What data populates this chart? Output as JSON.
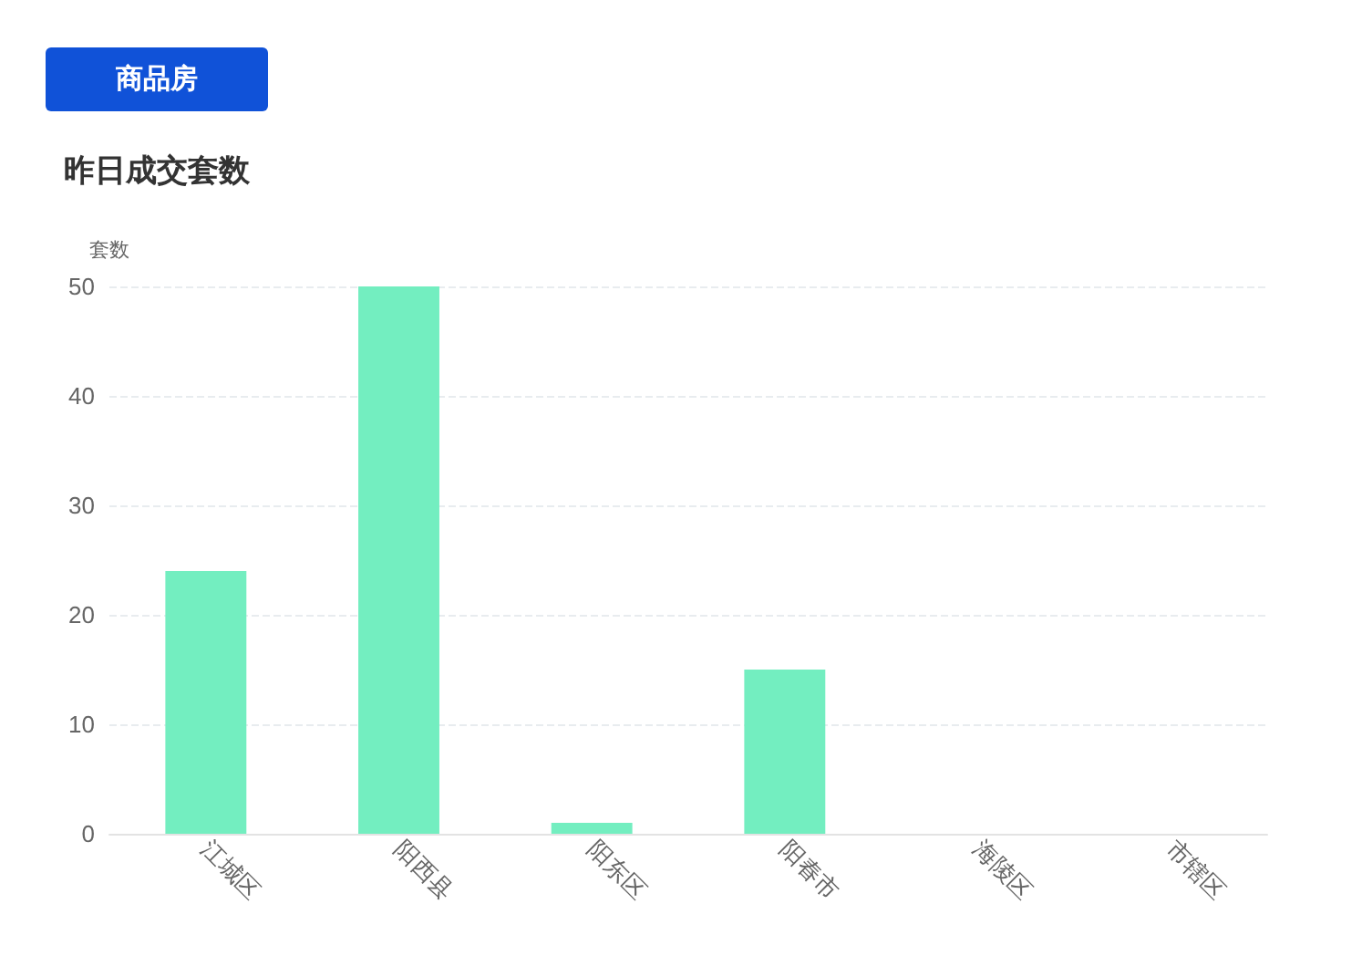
{
  "chart_data": {
    "type": "bar",
    "title": "昨日成交套数",
    "ylabel": "套数",
    "annotations": [
      "商品房"
    ],
    "categories": [
      "江城区",
      "阳西县",
      "阳东区",
      "阳春市",
      "海陵区",
      "市辖区"
    ],
    "values": [
      24,
      50,
      1,
      15,
      0,
      0
    ],
    "color": "#73eec0",
    "ylim": [
      0,
      50
    ],
    "yticks": [
      0,
      10,
      20,
      30,
      40,
      50
    ],
    "grid": "y"
  }
}
